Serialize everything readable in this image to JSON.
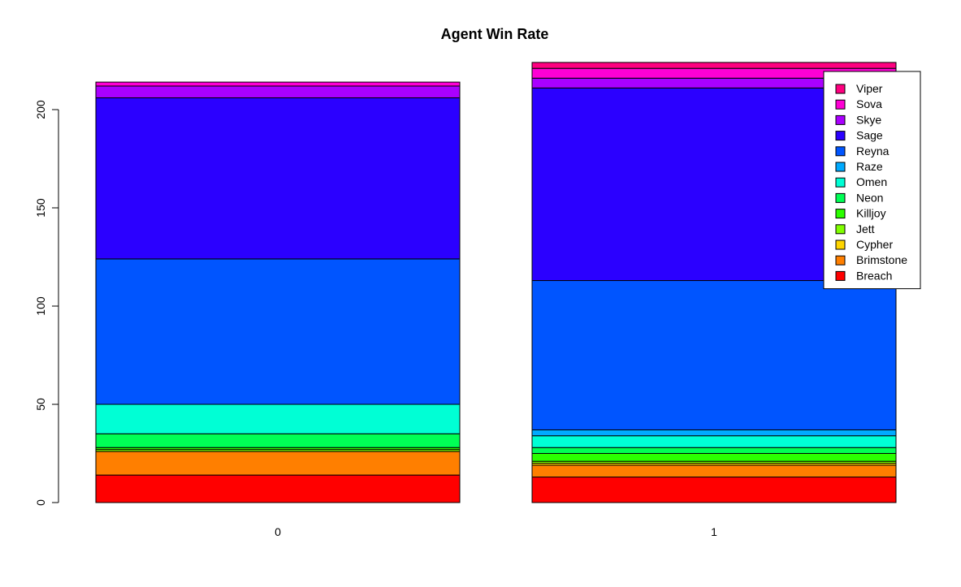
{
  "chart_data": {
    "type": "bar",
    "stacked": true,
    "title": "Agent Win Rate",
    "xlabel": "",
    "ylabel": "",
    "categories": [
      "0",
      "1"
    ],
    "ylim": [
      0,
      225
    ],
    "yticks": [
      0,
      50,
      100,
      150,
      200
    ],
    "grid": false,
    "legend_position": "top-right",
    "series": [
      {
        "name": "Breach",
        "color": "#FF0000",
        "values": [
          14,
          13
        ]
      },
      {
        "name": "Brimstone",
        "color": "#FF7F00",
        "values": [
          12,
          6
        ]
      },
      {
        "name": "Cypher",
        "color": "#FFD500",
        "values": [
          0,
          1
        ]
      },
      {
        "name": "Jett",
        "color": "#80FF00",
        "values": [
          1,
          1
        ]
      },
      {
        "name": "Killjoy",
        "color": "#2BFF00",
        "values": [
          1,
          4
        ]
      },
      {
        "name": "Neon",
        "color": "#00FF55",
        "values": [
          7,
          3
        ]
      },
      {
        "name": "Omen",
        "color": "#00FFD5",
        "values": [
          15,
          6
        ]
      },
      {
        "name": "Raze",
        "color": "#00AAFF",
        "values": [
          0,
          3
        ]
      },
      {
        "name": "Reyna",
        "color": "#0055FF",
        "values": [
          74,
          76
        ]
      },
      {
        "name": "Sage",
        "color": "#2B00FF",
        "values": [
          82,
          98
        ]
      },
      {
        "name": "Skye",
        "color": "#AA00FF",
        "values": [
          6,
          5
        ]
      },
      {
        "name": "Sova",
        "color": "#FF00D5",
        "values": [
          2,
          5
        ]
      },
      {
        "name": "Viper",
        "color": "#FF0080",
        "values": [
          0,
          3
        ]
      }
    ]
  }
}
